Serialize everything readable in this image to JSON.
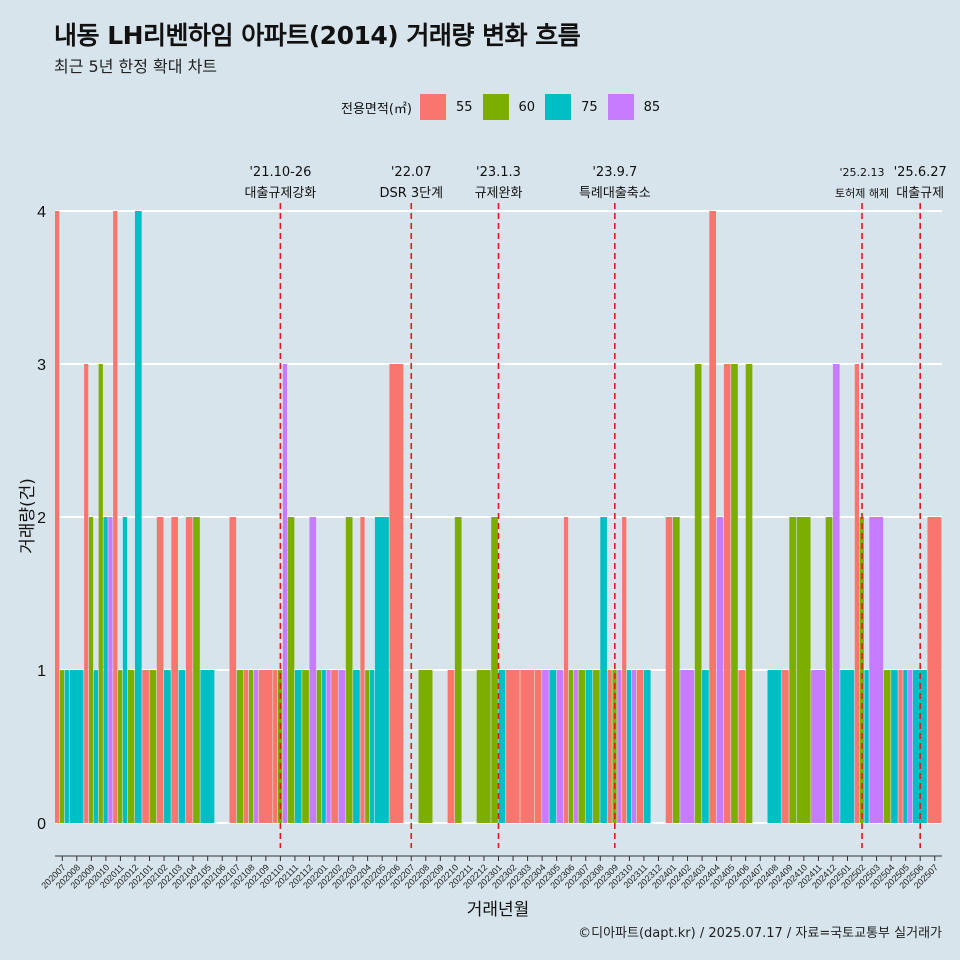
{
  "header": {
    "title": "내동 LH리벤하임 아파트(2014) 거래량 변화 흐름",
    "subtitle": "최근 5년 한정 확대 차트"
  },
  "legend": {
    "title": "전용면적(㎡)",
    "items": [
      {
        "label": "55",
        "color": "#f8766d"
      },
      {
        "label": "60",
        "color": "#7cae00"
      },
      {
        "label": "75",
        "color": "#00bfc4"
      },
      {
        "label": "85",
        "color": "#c77cff"
      }
    ]
  },
  "footer": {
    "source": "©디아파트(dapt.kr) / 2025.07.17 / 자료=국토교통부 실거래가"
  },
  "chart_data": {
    "type": "bar",
    "xlabel": "거래년월",
    "ylabel": "거래량(건)",
    "ylim": [
      0,
      4
    ],
    "y_ticks": [
      "0",
      "1",
      "2",
      "3",
      "4"
    ],
    "grid": true,
    "legend_position": "top",
    "categories": [
      "202007",
      "202008",
      "202009",
      "202010",
      "202011",
      "202012",
      "202101",
      "202102",
      "202103",
      "202104",
      "202105",
      "202106",
      "202107",
      "202108",
      "202109",
      "202110",
      "202111",
      "202112",
      "202201",
      "202202",
      "202203",
      "202204",
      "202205",
      "202206",
      "202207",
      "202208",
      "202209",
      "202210",
      "202211",
      "202212",
      "202301",
      "202302",
      "202303",
      "202304",
      "202305",
      "202306",
      "202307",
      "202308",
      "202309",
      "202310",
      "202311",
      "202312",
      "202401",
      "202402",
      "202403",
      "202404",
      "202405",
      "202406",
      "202407",
      "202408",
      "202409",
      "202410",
      "202411",
      "202412",
      "202501",
      "202502",
      "202503",
      "202504",
      "202505",
      "202506",
      "202507"
    ],
    "series": [
      {
        "name": "55",
        "color": "#f8766d",
        "values": [
          4,
          0,
          3,
          0,
          4,
          0,
          1,
          2,
          2,
          2,
          0,
          0,
          2,
          1,
          1,
          1,
          0,
          0,
          0,
          1,
          0,
          2,
          0,
          3,
          0,
          0,
          0,
          1,
          0,
          0,
          0,
          1,
          1,
          1,
          0,
          2,
          0,
          0,
          1,
          2,
          1,
          0,
          2,
          0,
          0,
          4,
          3,
          1,
          0,
          0,
          1,
          0,
          0,
          0,
          0,
          3,
          0,
          0,
          1,
          0,
          2
        ]
      },
      {
        "name": "60",
        "color": "#7cae00",
        "values": [
          1,
          0,
          2,
          3,
          1,
          1,
          1,
          0,
          0,
          2,
          0,
          0,
          1,
          1,
          0,
          1,
          2,
          1,
          1,
          0,
          2,
          1,
          0,
          0,
          0,
          1,
          0,
          2,
          0,
          1,
          2,
          0,
          0,
          0,
          0,
          1,
          1,
          1,
          1,
          0,
          0,
          0,
          2,
          0,
          3,
          0,
          3,
          3,
          0,
          0,
          2,
          2,
          0,
          2,
          0,
          2,
          0,
          1,
          0,
          0,
          0
        ]
      },
      {
        "name": "75",
        "color": "#00bfc4",
        "values": [
          1,
          1,
          1,
          2,
          2,
          4,
          0,
          1,
          1,
          0,
          1,
          0,
          0,
          0,
          0,
          0,
          1,
          0,
          1,
          0,
          1,
          1,
          2,
          0,
          0,
          0,
          0,
          0,
          0,
          0,
          1,
          0,
          0,
          0,
          1,
          0,
          1,
          2,
          0,
          1,
          1,
          0,
          0,
          0,
          1,
          0,
          0,
          0,
          0,
          1,
          0,
          0,
          0,
          0,
          1,
          1,
          0,
          1,
          1,
          1,
          0
        ]
      },
      {
        "name": "85",
        "color": "#c77cff",
        "values": [
          0,
          0,
          0,
          2,
          0,
          0,
          0,
          0,
          0,
          0,
          0,
          0,
          0,
          1,
          0,
          3,
          0,
          2,
          1,
          1,
          0,
          0,
          0,
          0,
          0,
          0,
          0,
          0,
          0,
          0,
          0,
          0,
          0,
          1,
          1,
          1,
          0,
          0,
          1,
          1,
          0,
          0,
          0,
          1,
          0,
          2,
          0,
          0,
          0,
          0,
          0,
          0,
          1,
          3,
          0,
          0,
          2,
          0,
          1,
          0,
          0
        ]
      }
    ],
    "events": [
      {
        "at": "202110",
        "date": "'21.10-26",
        "label": "대출규제강화"
      },
      {
        "at": "202207",
        "date": "'22.07",
        "label": "DSR 3단계"
      },
      {
        "at": "202301",
        "date": "'23.1.3",
        "label": "규제완화"
      },
      {
        "at": "202309",
        "date": "'23.9.7",
        "label": "특례대출축소"
      },
      {
        "at": "202502",
        "date": "'25.2.13",
        "label": "토허제 해제"
      },
      {
        "at": "202506",
        "date": "'25.6.27",
        "label": "대출규제"
      }
    ]
  }
}
